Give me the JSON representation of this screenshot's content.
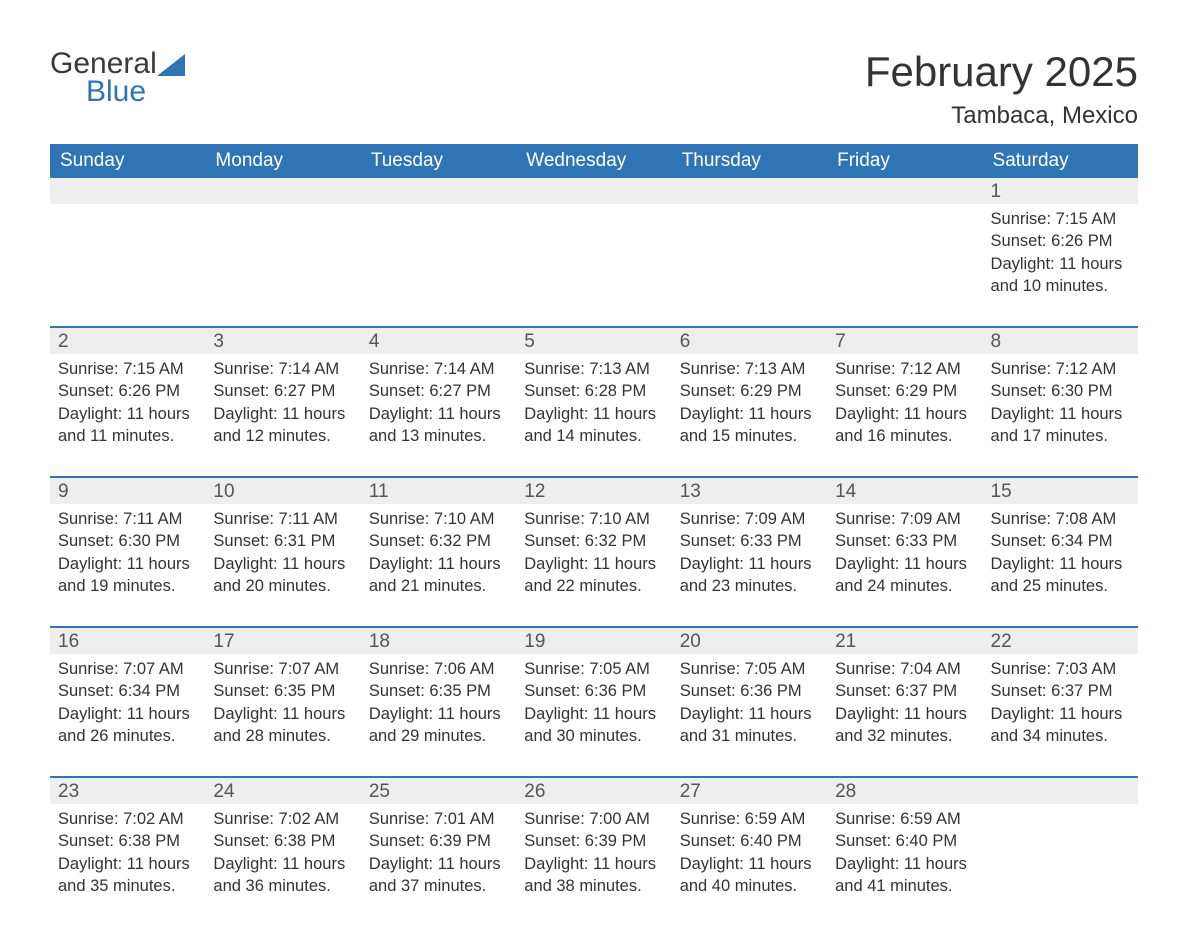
{
  "logo": {
    "general": "General",
    "blue": "Blue"
  },
  "title": "February 2025",
  "location": "Tambaca, Mexico",
  "colors": {
    "header_bg": "#2f74b5",
    "header_text": "#ffffff",
    "row_rule": "#2f74b5",
    "daynum_bg": "#eeeeee",
    "body_text": "#333333"
  },
  "weekdays": [
    "Sunday",
    "Monday",
    "Tuesday",
    "Wednesday",
    "Thursday",
    "Friday",
    "Saturday"
  ],
  "weeks": [
    [
      {
        "day": "",
        "sunrise": "",
        "sunset": "",
        "daylight": ""
      },
      {
        "day": "",
        "sunrise": "",
        "sunset": "",
        "daylight": ""
      },
      {
        "day": "",
        "sunrise": "",
        "sunset": "",
        "daylight": ""
      },
      {
        "day": "",
        "sunrise": "",
        "sunset": "",
        "daylight": ""
      },
      {
        "day": "",
        "sunrise": "",
        "sunset": "",
        "daylight": ""
      },
      {
        "day": "",
        "sunrise": "",
        "sunset": "",
        "daylight": ""
      },
      {
        "day": "1",
        "sunrise": "Sunrise: 7:15 AM",
        "sunset": "Sunset: 6:26 PM",
        "daylight": "Daylight: 11 hours and 10 minutes."
      }
    ],
    [
      {
        "day": "2",
        "sunrise": "Sunrise: 7:15 AM",
        "sunset": "Sunset: 6:26 PM",
        "daylight": "Daylight: 11 hours and 11 minutes."
      },
      {
        "day": "3",
        "sunrise": "Sunrise: 7:14 AM",
        "sunset": "Sunset: 6:27 PM",
        "daylight": "Daylight: 11 hours and 12 minutes."
      },
      {
        "day": "4",
        "sunrise": "Sunrise: 7:14 AM",
        "sunset": "Sunset: 6:27 PM",
        "daylight": "Daylight: 11 hours and 13 minutes."
      },
      {
        "day": "5",
        "sunrise": "Sunrise: 7:13 AM",
        "sunset": "Sunset: 6:28 PM",
        "daylight": "Daylight: 11 hours and 14 minutes."
      },
      {
        "day": "6",
        "sunrise": "Sunrise: 7:13 AM",
        "sunset": "Sunset: 6:29 PM",
        "daylight": "Daylight: 11 hours and 15 minutes."
      },
      {
        "day": "7",
        "sunrise": "Sunrise: 7:12 AM",
        "sunset": "Sunset: 6:29 PM",
        "daylight": "Daylight: 11 hours and 16 minutes."
      },
      {
        "day": "8",
        "sunrise": "Sunrise: 7:12 AM",
        "sunset": "Sunset: 6:30 PM",
        "daylight": "Daylight: 11 hours and 17 minutes."
      }
    ],
    [
      {
        "day": "9",
        "sunrise": "Sunrise: 7:11 AM",
        "sunset": "Sunset: 6:30 PM",
        "daylight": "Daylight: 11 hours and 19 minutes."
      },
      {
        "day": "10",
        "sunrise": "Sunrise: 7:11 AM",
        "sunset": "Sunset: 6:31 PM",
        "daylight": "Daylight: 11 hours and 20 minutes."
      },
      {
        "day": "11",
        "sunrise": "Sunrise: 7:10 AM",
        "sunset": "Sunset: 6:32 PM",
        "daylight": "Daylight: 11 hours and 21 minutes."
      },
      {
        "day": "12",
        "sunrise": "Sunrise: 7:10 AM",
        "sunset": "Sunset: 6:32 PM",
        "daylight": "Daylight: 11 hours and 22 minutes."
      },
      {
        "day": "13",
        "sunrise": "Sunrise: 7:09 AM",
        "sunset": "Sunset: 6:33 PM",
        "daylight": "Daylight: 11 hours and 23 minutes."
      },
      {
        "day": "14",
        "sunrise": "Sunrise: 7:09 AM",
        "sunset": "Sunset: 6:33 PM",
        "daylight": "Daylight: 11 hours and 24 minutes."
      },
      {
        "day": "15",
        "sunrise": "Sunrise: 7:08 AM",
        "sunset": "Sunset: 6:34 PM",
        "daylight": "Daylight: 11 hours and 25 minutes."
      }
    ],
    [
      {
        "day": "16",
        "sunrise": "Sunrise: 7:07 AM",
        "sunset": "Sunset: 6:34 PM",
        "daylight": "Daylight: 11 hours and 26 minutes."
      },
      {
        "day": "17",
        "sunrise": "Sunrise: 7:07 AM",
        "sunset": "Sunset: 6:35 PM",
        "daylight": "Daylight: 11 hours and 28 minutes."
      },
      {
        "day": "18",
        "sunrise": "Sunrise: 7:06 AM",
        "sunset": "Sunset: 6:35 PM",
        "daylight": "Daylight: 11 hours and 29 minutes."
      },
      {
        "day": "19",
        "sunrise": "Sunrise: 7:05 AM",
        "sunset": "Sunset: 6:36 PM",
        "daylight": "Daylight: 11 hours and 30 minutes."
      },
      {
        "day": "20",
        "sunrise": "Sunrise: 7:05 AM",
        "sunset": "Sunset: 6:36 PM",
        "daylight": "Daylight: 11 hours and 31 minutes."
      },
      {
        "day": "21",
        "sunrise": "Sunrise: 7:04 AM",
        "sunset": "Sunset: 6:37 PM",
        "daylight": "Daylight: 11 hours and 32 minutes."
      },
      {
        "day": "22",
        "sunrise": "Sunrise: 7:03 AM",
        "sunset": "Sunset: 6:37 PM",
        "daylight": "Daylight: 11 hours and 34 minutes."
      }
    ],
    [
      {
        "day": "23",
        "sunrise": "Sunrise: 7:02 AM",
        "sunset": "Sunset: 6:38 PM",
        "daylight": "Daylight: 11 hours and 35 minutes."
      },
      {
        "day": "24",
        "sunrise": "Sunrise: 7:02 AM",
        "sunset": "Sunset: 6:38 PM",
        "daylight": "Daylight: 11 hours and 36 minutes."
      },
      {
        "day": "25",
        "sunrise": "Sunrise: 7:01 AM",
        "sunset": "Sunset: 6:39 PM",
        "daylight": "Daylight: 11 hours and 37 minutes."
      },
      {
        "day": "26",
        "sunrise": "Sunrise: 7:00 AM",
        "sunset": "Sunset: 6:39 PM",
        "daylight": "Daylight: 11 hours and 38 minutes."
      },
      {
        "day": "27",
        "sunrise": "Sunrise: 6:59 AM",
        "sunset": "Sunset: 6:40 PM",
        "daylight": "Daylight: 11 hours and 40 minutes."
      },
      {
        "day": "28",
        "sunrise": "Sunrise: 6:59 AM",
        "sunset": "Sunset: 6:40 PM",
        "daylight": "Daylight: 11 hours and 41 minutes."
      },
      {
        "day": "",
        "sunrise": "",
        "sunset": "",
        "daylight": ""
      }
    ]
  ]
}
